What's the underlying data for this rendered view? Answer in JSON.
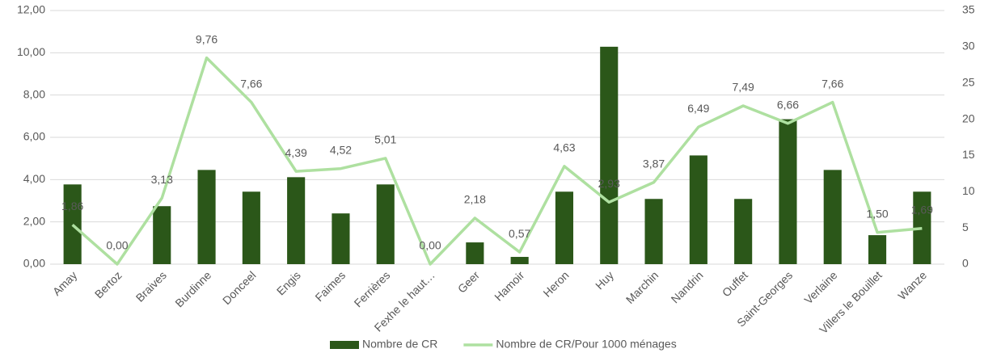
{
  "chart_data": {
    "type": "bar-line",
    "categories": [
      "Amay",
      "Bertoz",
      "Braives",
      "Burdinne",
      "Donceel",
      "Engis",
      "Faimes",
      "Ferrières",
      "Fexhe le haut…",
      "Geer",
      "Hamoir",
      "Heron",
      "Huy",
      "Marchin",
      "Nandrin",
      "Ouffet",
      "Saint-Georges",
      "Verlaine",
      "Villers le Bouillet",
      "Wanze"
    ],
    "series": [
      {
        "name": "Nombre de CR",
        "type": "bar",
        "axis": "y2",
        "color": "#2b5719",
        "values": [
          11,
          0,
          8,
          13,
          10,
          12,
          7,
          11,
          0,
          3,
          1,
          10,
          30,
          9,
          15,
          9,
          20,
          13,
          4,
          10
        ]
      },
      {
        "name": "Nombre de CR/Pour 1000 ménages",
        "type": "line",
        "axis": "y",
        "color": "#aee0a0",
        "values": [
          1.86,
          0,
          3.13,
          9.76,
          7.66,
          4.39,
          4.52,
          5.01,
          0,
          2.18,
          0.57,
          4.63,
          2.93,
          3.87,
          6.49,
          7.49,
          6.66,
          7.66,
          1.5,
          1.69
        ],
        "value_labels": [
          "1,86",
          "0,00",
          "3,13",
          "9,76",
          "7,66",
          "4,39",
          "4,52",
          "5,01",
          "0,00",
          "2,18",
          "0,57",
          "4,63",
          "2,93",
          "3,87",
          "6,49",
          "7,49",
          "6,66",
          "7,66",
          "1,50",
          "1,69"
        ]
      }
    ],
    "ylim": [
      0,
      12
    ],
    "yticks": [
      {
        "value": 0,
        "label": "0,00"
      },
      {
        "value": 2,
        "label": "2,00"
      },
      {
        "value": 4,
        "label": "4,00"
      },
      {
        "value": 6,
        "label": "6,00"
      },
      {
        "value": 8,
        "label": "8,00"
      },
      {
        "value": 10,
        "label": "10,00"
      },
      {
        "value": 12,
        "label": "12,00"
      }
    ],
    "y2lim": [
      0,
      35
    ],
    "y2ticks": [
      0,
      5,
      10,
      15,
      20,
      25,
      30,
      35
    ],
    "grid": true,
    "legend": "bottom"
  }
}
